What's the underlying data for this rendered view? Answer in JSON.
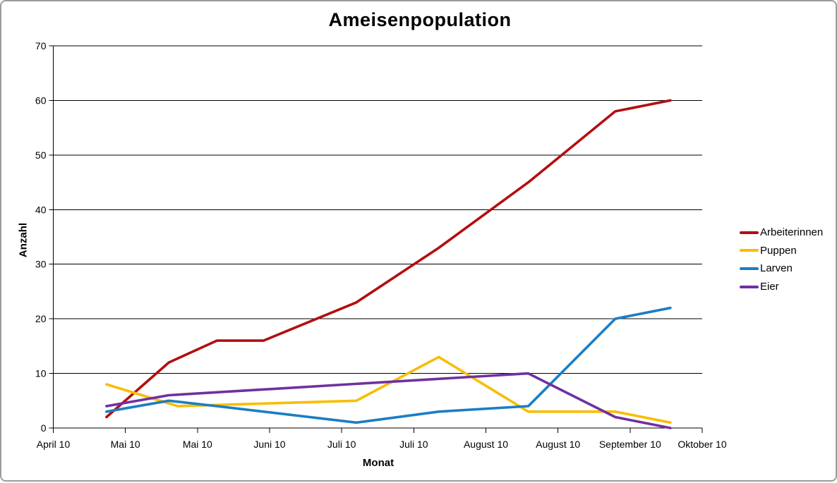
{
  "chart_data": {
    "type": "line",
    "title": "Ameisenpopulation",
    "xlabel": "Monat",
    "ylabel": "Anzahl",
    "ylim": [
      0,
      70
    ],
    "yticks": [
      0,
      10,
      20,
      30,
      40,
      50,
      60,
      70
    ],
    "xticks": [
      "April 10",
      "Mai 10",
      "Mai 10",
      "Juni 10",
      "Juli 10",
      "Juli 10",
      "August 10",
      "August 10",
      "September 10",
      "Oktober 10"
    ],
    "grid": "horizontal-black-lines",
    "legend_position": "right-middle",
    "series": [
      {
        "name": "Arbeiterinnen",
        "color": "#b20f10",
        "points": [
          [
            0.082,
            2
          ],
          [
            0.178,
            12
          ],
          [
            0.252,
            16
          ],
          [
            0.324,
            16
          ],
          [
            0.467,
            23
          ],
          [
            0.594,
            33
          ],
          [
            0.732,
            45
          ],
          [
            0.866,
            58
          ],
          [
            0.951,
            60
          ]
        ]
      },
      {
        "name": "Puppen",
        "color": "#f8bd00",
        "points": [
          [
            0.082,
            8
          ],
          [
            0.192,
            4
          ],
          [
            0.467,
            5
          ],
          [
            0.594,
            13
          ],
          [
            0.732,
            3
          ],
          [
            0.866,
            3
          ],
          [
            0.951,
            1
          ]
        ]
      },
      {
        "name": "Larven",
        "color": "#1b7ec2",
        "points": [
          [
            0.082,
            3
          ],
          [
            0.178,
            5
          ],
          [
            0.252,
            4
          ],
          [
            0.324,
            3
          ],
          [
            0.467,
            1
          ],
          [
            0.594,
            3
          ],
          [
            0.732,
            4
          ],
          [
            0.866,
            20
          ],
          [
            0.951,
            22
          ]
        ]
      },
      {
        "name": "Eier",
        "color": "#7030a0",
        "points": [
          [
            0.082,
            4
          ],
          [
            0.178,
            6
          ],
          [
            0.732,
            10
          ],
          [
            0.866,
            2
          ],
          [
            0.951,
            0
          ]
        ]
      }
    ]
  }
}
